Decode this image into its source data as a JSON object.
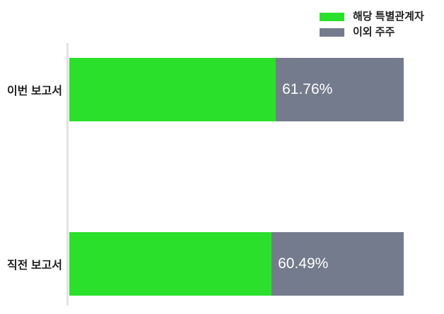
{
  "chart_data": {
    "type": "bar",
    "orientation": "horizontal",
    "stacked": true,
    "unit": "%",
    "categories": [
      "이번 보고서",
      "직전 보고서"
    ],
    "series": [
      {
        "name": "해당 특별관계자",
        "color": "#2BE02B",
        "values": [
          61.76,
          60.49
        ]
      },
      {
        "name": "이외 주주",
        "color": "#747B8C",
        "values": [
          38.24,
          39.51
        ]
      }
    ],
    "value_labels": [
      "61.76%",
      "60.49%"
    ],
    "value_label_color": "#FFFFFF",
    "xlim": [
      0,
      100
    ],
    "grid": false,
    "legend_position": "top-right",
    "axis_line_color": "#E2E2E2",
    "text_color": "#1F1F1F",
    "background_color": "#FFFFFF"
  }
}
